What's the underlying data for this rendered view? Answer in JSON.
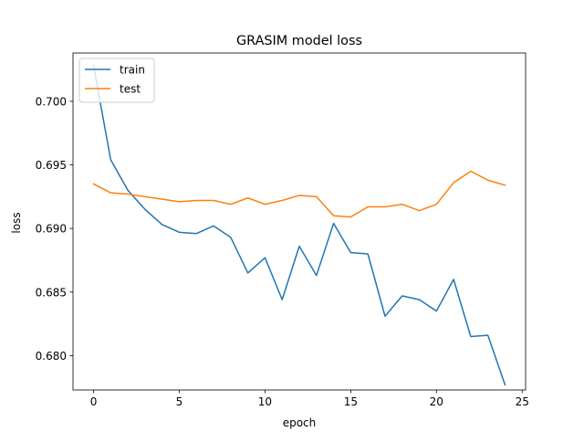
{
  "chart_data": {
    "type": "line",
    "title": "GRASIM model loss",
    "xlabel": "epoch",
    "ylabel": "loss",
    "xlim": [
      -1.2,
      25.2
    ],
    "ylim": [
      0.6773,
      0.7038
    ],
    "x_ticks": [
      0,
      5,
      10,
      15,
      20,
      25
    ],
    "y_ticks": [
      0.68,
      0.685,
      0.69,
      0.695,
      0.7
    ],
    "x_tick_labels": [
      "0",
      "5",
      "10",
      "15",
      "20",
      "25"
    ],
    "y_tick_labels": [
      "0.680",
      "0.685",
      "0.690",
      "0.695",
      "0.700"
    ],
    "grid": false,
    "legend_position": "top-left",
    "x": [
      0,
      1,
      2,
      3,
      4,
      5,
      6,
      7,
      8,
      9,
      10,
      11,
      12,
      13,
      14,
      15,
      16,
      17,
      18,
      19,
      20,
      21,
      22,
      23,
      24
    ],
    "series": [
      {
        "name": "train",
        "color": "#1f77b4",
        "values": [
          0.7028,
          0.6954,
          0.693,
          0.6915,
          0.6903,
          0.6897,
          0.6896,
          0.6902,
          0.6893,
          0.6865,
          0.6877,
          0.6844,
          0.6886,
          0.6863,
          0.6904,
          0.6881,
          0.688,
          0.6831,
          0.6847,
          0.6844,
          0.6835,
          0.686,
          0.6815,
          0.6816,
          0.6777
        ]
      },
      {
        "name": "test",
        "color": "#ff7f0e",
        "values": [
          0.6935,
          0.6928,
          0.6927,
          0.6925,
          0.6923,
          0.6921,
          0.6922,
          0.6922,
          0.6919,
          0.6924,
          0.6919,
          0.6922,
          0.6926,
          0.6925,
          0.691,
          0.6909,
          0.6917,
          0.6917,
          0.6919,
          0.6914,
          0.6919,
          0.6936,
          0.6945,
          0.6938,
          0.6934
        ]
      }
    ]
  }
}
